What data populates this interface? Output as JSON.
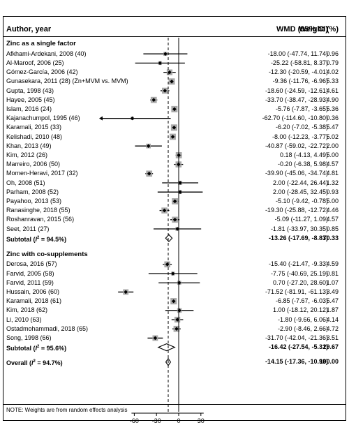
{
  "headers": {
    "author": "Author, year",
    "wmd": "WMD (95% CI)",
    "weight": "Weight (%)"
  },
  "groups": [
    {
      "title": "Zinc as a single factor",
      "studies": [
        {
          "label": "Afkhami-Ardekani, 2008 (40)",
          "ci_text": "-18.00 (-47.74, 11.74)",
          "weight": "0.96",
          "est": -18.0,
          "lo": -47.74,
          "hi": 11.74
        },
        {
          "label": "Al-Maroof, 2006 (25)",
          "ci_text": "-25.22 (-58.81, 8.37)",
          "weight": "0.79",
          "est": -25.22,
          "lo": -58.81,
          "hi": 8.37
        },
        {
          "label": "Gómez-García, 2006 (42)",
          "ci_text": "-12.30 (-20.59, -4.01)",
          "weight": "4.02",
          "est": -12.3,
          "lo": -20.59,
          "hi": -4.01
        },
        {
          "label": "Gunasekara, 2011 (28) (Zn+MVM vs. MVM)",
          "ci_text": "-9.36 (-11.76, -6.96)",
          "weight": "5.33",
          "est": -9.36,
          "lo": -11.76,
          "hi": -6.96
        },
        {
          "label": "Gupta, 1998 (43)",
          "ci_text": "-18.60 (-24.59, -12.61)",
          "weight": "4.61",
          "est": -18.6,
          "lo": -24.59,
          "hi": -12.61
        },
        {
          "label": "Hayee, 2005 (45)",
          "ci_text": "-33.70 (-38.47, -28.93)",
          "weight": "4.90",
          "est": -33.7,
          "lo": -38.47,
          "hi": -28.93
        },
        {
          "label": "Islam, 2016 (24)",
          "ci_text": "-5.76 (-7.87, -3.65)",
          "weight": "5.36",
          "est": -5.76,
          "lo": -7.87,
          "hi": -3.65
        },
        {
          "label": "Kajanachumpol, 1995 (46)",
          "ci_text": "-62.70 (-114.60, -10.80)",
          "weight": "0.36",
          "est": -62.7,
          "lo": -114.6,
          "hi": -10.8
        },
        {
          "label": "Karamali, 2015 (33)",
          "ci_text": "-6.20 (-7.02, -5.38)",
          "weight": "5.47",
          "est": -6.2,
          "lo": -7.02,
          "hi": -5.38
        },
        {
          "label": "Kelishadi, 2010 (48)",
          "ci_text": "-8.00 (-12.23, -3.77)",
          "weight": "5.02",
          "est": -8.0,
          "lo": -12.23,
          "hi": -3.77
        },
        {
          "label": "Khan, 2013 (49)",
          "ci_text": "-40.87 (-59.02, -22.72)",
          "weight": "2.00",
          "est": -40.87,
          "lo": -59.02,
          "hi": -22.72
        },
        {
          "label": "Kim, 2012 (26)",
          "ci_text": "0.18 (-4.13, 4.49)",
          "weight": "5.00",
          "est": 0.18,
          "lo": -4.13,
          "hi": 4.49
        },
        {
          "label": "Marreiro, 2006 (50)",
          "ci_text": "-0.20 (-6.38, 5.98)",
          "weight": "4.57",
          "est": -0.2,
          "lo": -6.38,
          "hi": 5.98
        },
        {
          "label": "Momen-Heravi, 2017 (32)",
          "ci_text": "-39.90 (-45.06, -34.74)",
          "weight": "4.81",
          "est": -39.9,
          "lo": -45.06,
          "hi": -34.74
        },
        {
          "label": "Oh, 2008 (51)",
          "ci_text": "2.00 (-22.44, 26.44)",
          "weight": "1.32",
          "est": 2.0,
          "lo": -22.44,
          "hi": 26.44
        },
        {
          "label": "Parham, 2008 (52)",
          "ci_text": "2.00 (-28.45, 32.45)",
          "weight": "0.93",
          "est": 2.0,
          "lo": -28.45,
          "hi": 32.45
        },
        {
          "label": "Payahoo, 2013 (53)",
          "ci_text": "-5.10 (-9.42, -0.78)",
          "weight": "5.00",
          "est": -5.1,
          "lo": -9.42,
          "hi": -0.78
        },
        {
          "label": "Ranasinghe, 2018 (55)",
          "ci_text": "-19.30 (-25.88, -12.72)",
          "weight": "4.46",
          "est": -19.3,
          "lo": -25.88,
          "hi": -12.72
        },
        {
          "label": "Roshanravan, 2015 (56)",
          "ci_text": "-5.09 (-11.27, 1.09)",
          "weight": "4.57",
          "est": -5.09,
          "lo": -11.27,
          "hi": 1.09
        },
        {
          "label": "Seet, 2011 (27)",
          "ci_text": "-1.81 (-33.97, 30.35)",
          "weight": "0.85",
          "est": -1.81,
          "lo": -33.97,
          "hi": 30.35
        }
      ],
      "subtotal": {
        "label_prefix": "Subtotal (",
        "label_i": "I",
        "label_sup": "2",
        "label_suffix": " = 94.5%)",
        "ci_text": "-13.26 (-17.69, -8.83)",
        "weight": "70.33",
        "est": -13.26,
        "lo": -17.69,
        "hi": -8.83
      }
    },
    {
      "title": "Zinc with co-supplements",
      "studies": [
        {
          "label": "Derosa, 2016 (57)",
          "ci_text": "-15.40 (-21.47, -9.33)",
          "weight": "4.59",
          "est": -15.4,
          "lo": -21.47,
          "hi": -9.33
        },
        {
          "label": "Farvid, 2005 (58)",
          "ci_text": "-7.75 (-40.69, 25.19)",
          "weight": "0.81",
          "est": -7.75,
          "lo": -40.69,
          "hi": 25.19
        },
        {
          "label": "Farvid, 2011 (59)",
          "ci_text": "0.70 (-27.20, 28.60)",
          "weight": "1.07",
          "est": 0.7,
          "lo": -27.2,
          "hi": 28.6
        },
        {
          "label": "Hussain, 2006 (60)",
          "ci_text": "-71.52 (-81.91, -61.13)",
          "weight": "3.49",
          "est": -71.52,
          "lo": -81.91,
          "hi": -61.13
        },
        {
          "label": "Karamali, 2018 (61)",
          "ci_text": "-6.85 (-7.67, -6.03)",
          "weight": "5.47",
          "est": -6.85,
          "lo": -7.67,
          "hi": -6.03
        },
        {
          "label": "Kim, 2018 (62)",
          "ci_text": "1.00 (-18.12, 20.12)",
          "weight": "1.87",
          "est": 1.0,
          "lo": -18.12,
          "hi": 20.12
        },
        {
          "label": "Li, 2010 (63)",
          "ci_text": "-1.80 (-9.66, 6.06)",
          "weight": "4.14",
          "est": -1.8,
          "lo": -9.66,
          "hi": 6.06
        },
        {
          "label": "Ostadmohammadi, 2018 (65)",
          "ci_text": "-2.90 (-8.46, 2.66)",
          "weight": "4.72",
          "est": -2.9,
          "lo": -8.46,
          "hi": 2.66
        },
        {
          "label": "Song, 1998 (66)",
          "ci_text": "-31.70 (-42.04, -21.36)",
          "weight": "3.51",
          "est": -31.7,
          "lo": -42.04,
          "hi": -21.36
        }
      ],
      "subtotal": {
        "label_prefix": "Subtotal (",
        "label_i": "I",
        "label_sup": "2",
        "label_suffix": " = 95.6%)",
        "ci_text": "-16.42 (-27.54, -5.31)",
        "weight": "29.67",
        "est": -16.42,
        "lo": -27.54,
        "hi": -5.31
      }
    }
  ],
  "overall": {
    "label_prefix": "Overall (",
    "label_i": "I",
    "label_sup": "2",
    "label_suffix": " = 94.7%)",
    "ci_text": "-14.15 (-17.36, -10.93)",
    "weight": "100.00",
    "est": -14.15,
    "lo": -17.36,
    "hi": -10.93
  },
  "note": "NOTE: Weights are from random effects analysis",
  "chart_data": {
    "type": "forest",
    "xticks": [
      -60,
      -30,
      0,
      30
    ],
    "xtick_labels": [
      "-60",
      "-30",
      "0",
      "30"
    ],
    "null_line": 0,
    "pooled_line": -14.15,
    "colors": {
      "box": "#a9a9a9",
      "line": "#000000"
    }
  }
}
